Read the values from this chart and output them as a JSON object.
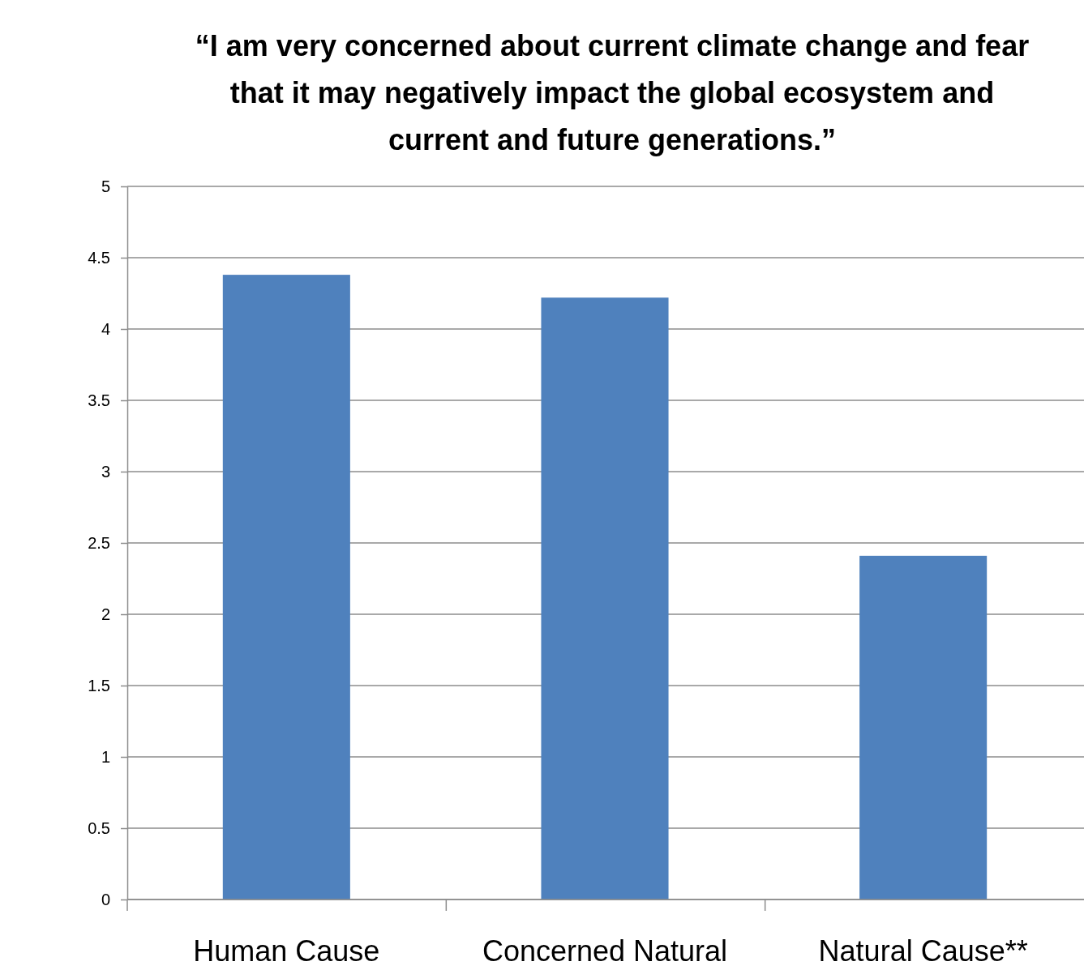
{
  "chart_data": {
    "type": "bar",
    "title": "“I am very concerned about current climate change and fear that it may negatively impact the global ecosystem and current and future generations.”",
    "categories": [
      "Human Cause",
      "Concerned Natural",
      "Natural Cause**"
    ],
    "values": [
      4.38,
      4.22,
      2.41
    ],
    "color": "#4f81bd",
    "ylim": [
      0,
      5
    ],
    "yticks": [
      0,
      0.5,
      1,
      1.5,
      2,
      2.5,
      3,
      3.5,
      4,
      4.5,
      5
    ],
    "grid": "y"
  }
}
